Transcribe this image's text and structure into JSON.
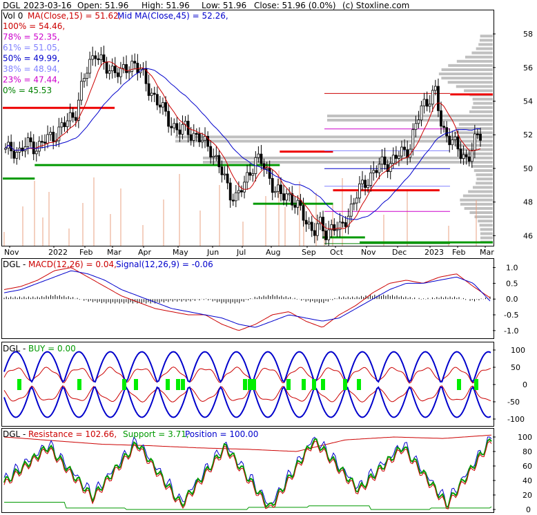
{
  "header": {
    "symbol": "DGL",
    "date": "2023-03-16",
    "open_label": "Open: 51.96",
    "high_label": "High: 51.96",
    "low_label": "Low: 51.96",
    "close_label": "Close: 51.96 (0.0%)",
    "source": "(c) Stoxline.com",
    "vol_label": "Vol 0",
    "ma15_label": "MA(Close,15) = 51.62,",
    "ma45_label": "Mid MA(Close,45) = 52.26,"
  },
  "fib_levels": [
    {
      "label": "100% = 54.46,",
      "color": "#cc0000",
      "value": 54.46
    },
    {
      "label": "78% = 52.35,",
      "color": "#cc00cc",
      "value": 52.35
    },
    {
      "label": "61% = 51.05,",
      "color": "#8080ff",
      "value": 51.05
    },
    {
      "label": "50% = 49.99,",
      "color": "#0000cc",
      "value": 49.99
    },
    {
      "label": "38% = 48.94,",
      "color": "#8080ff",
      "value": 48.94
    },
    {
      "label": "23% = 47.44,",
      "color": "#cc00cc",
      "value": 47.44
    },
    {
      "label": "0% = 45.53",
      "color": "#008000",
      "value": 45.53
    }
  ],
  "panels": {
    "macd_title": "DGL - ",
    "macd_a": "MACD(12,26) = 0.04,",
    "macd_b": "Signal(12,26,9) = -0.06",
    "buy_title": "DGL - ",
    "buy_a": "BUY = 0.00",
    "pos_title": "DGL - ",
    "pos_a": "Resistance = 102.66,",
    "pos_b": "Support = 3.71,",
    "pos_c": "Position = 100.00"
  },
  "colors": {
    "up": "#000000",
    "down": "#000000",
    "ma15": "#cc0000",
    "ma45": "#0000cc",
    "resistance": "#ee0000",
    "support": "#009900",
    "volume": "#e8a080",
    "profile": "#c0c0c0",
    "buy_band": "#0000cc",
    "buy_mid": "#cc0000",
    "buy_mark": "#00ee00"
  },
  "chart_data": [
    {
      "type": "candlestick",
      "title": "DGL 2023-03-16",
      "x_labels": [
        "Nov",
        "2022",
        "Feb",
        "Mar",
        "Apr",
        "May",
        "Jun",
        "Jul",
        "Aug",
        "Sep",
        "Oct",
        "Nov",
        "Dec",
        "2023",
        "Feb",
        "Mar"
      ],
      "y_ticks": [
        46,
        48,
        50,
        52,
        54,
        56,
        58
      ],
      "ylim": [
        45.4,
        59.4
      ],
      "close_series": [
        51.0,
        51.2,
        50.9,
        51.3,
        51.5,
        51.2,
        51.6,
        51.9,
        52.1,
        52.5,
        53.0,
        53.4,
        55.0,
        56.2,
        57.0,
        56.2,
        55.8,
        56.0,
        55.6,
        55.9,
        56.4,
        55.8,
        54.9,
        54.4,
        53.8,
        53.1,
        52.6,
        52.2,
        52.4,
        52.1,
        51.8,
        51.5,
        51.2,
        50.3,
        49.5,
        48.6,
        48.2,
        48.9,
        49.8,
        50.5,
        50.3,
        49.6,
        48.7,
        48.3,
        48.5,
        48.0,
        47.4,
        46.8,
        46.3,
        46.6,
        46.1,
        46.7,
        46.2,
        47.0,
        47.8,
        48.6,
        49.2,
        49.6,
        50.0,
        50.4,
        50.3,
        50.7,
        51.0,
        51.3,
        52.6,
        53.8,
        54.2,
        54.5,
        52.3,
        52.0,
        51.4,
        50.8,
        50.6,
        51.5,
        51.96
      ],
      "resistance_segments": [
        {
          "from": 0,
          "to": 21,
          "value": 53.6
        },
        {
          "from": 52,
          "to": 62,
          "value": 51.0
        },
        {
          "from": 62,
          "to": 82,
          "value": 48.7
        },
        {
          "from": 84,
          "to": 92,
          "value": 54.4
        }
      ],
      "support_segments": [
        {
          "from": 0,
          "to": 6,
          "value": 49.4
        },
        {
          "from": 6,
          "to": 52,
          "value": 50.2
        },
        {
          "from": 47,
          "to": 62,
          "value": 47.9
        },
        {
          "from": 60,
          "to": 68,
          "value": 45.9
        },
        {
          "from": 67,
          "to": 92,
          "value": 45.6
        }
      ]
    },
    {
      "type": "line",
      "title": "MACD(12,26)",
      "y_ticks": [
        1.0,
        0.5,
        0.0,
        -0.5,
        -1.0
      ],
      "series": [
        {
          "name": "MACD(12,26)",
          "values": [
            0.3,
            0.4,
            0.6,
            0.9,
            1.0,
            0.7,
            0.4,
            0.1,
            -0.1,
            -0.3,
            -0.4,
            -0.5,
            -0.5,
            -0.8,
            -1.0,
            -0.8,
            -0.5,
            -0.4,
            -0.7,
            -0.9,
            -0.5,
            -0.2,
            0.2,
            0.5,
            0.6,
            0.5,
            0.7,
            0.8,
            0.4,
            0.04
          ]
        },
        {
          "name": "Signal(12,26,9)",
          "values": [
            0.2,
            0.3,
            0.5,
            0.7,
            0.9,
            0.8,
            0.6,
            0.3,
            0.1,
            -0.1,
            -0.3,
            -0.4,
            -0.5,
            -0.6,
            -0.8,
            -0.9,
            -0.7,
            -0.5,
            -0.6,
            -0.7,
            -0.6,
            -0.3,
            0.0,
            0.3,
            0.5,
            0.5,
            0.6,
            0.7,
            0.5,
            -0.06
          ]
        }
      ]
    },
    {
      "type": "line",
      "title": "BUY",
      "y_ticks": [
        100,
        50,
        0,
        -50,
        -100
      ],
      "series": [
        {
          "name": "BUY",
          "values": [
            0.0
          ]
        }
      ]
    },
    {
      "type": "line",
      "title": "Position",
      "y_ticks": [
        100,
        80,
        60,
        40,
        20,
        0
      ],
      "series": [
        {
          "name": "Resistance",
          "values": [
            100,
            95,
            90,
            88,
            85,
            83,
            80,
            96,
            100,
            98,
            102.66
          ]
        },
        {
          "name": "Support",
          "values": [
            10,
            2,
            0,
            0,
            3,
            5,
            0,
            2,
            3.71
          ]
        },
        {
          "name": "Position",
          "values": [
            40,
            90,
            20,
            95,
            10,
            90,
            5,
            100,
            30,
            90,
            10,
            100
          ]
        }
      ]
    }
  ]
}
